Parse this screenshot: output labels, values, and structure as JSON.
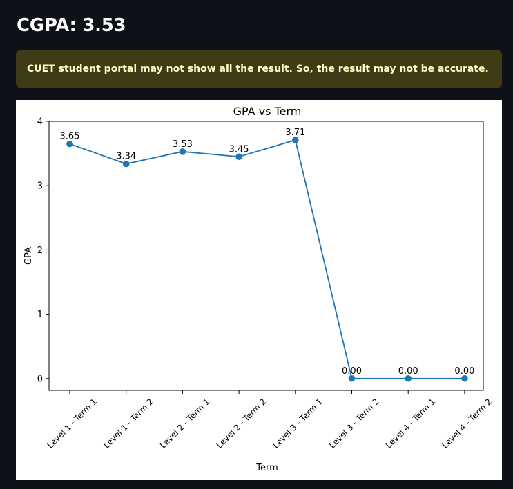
{
  "heading": "CGPA: 3.53",
  "warning": "CUET student portal may not show all the result. So, the result may not be accurate.",
  "colors": {
    "background": "#0e1117",
    "warning_bg": "#3e3b16",
    "warning_text": "#ffffc2",
    "line": "#1f77b4"
  },
  "chart_data": {
    "type": "line",
    "title": "GPA vs Term",
    "xlabel": "Term",
    "ylabel": "GPA",
    "categories": [
      "Level 1 - Term 1",
      "Level 1 - Term 2",
      "Level 2 - Term 1",
      "Level 2 - Term 2",
      "Level 3 - Term 1",
      "Level 3 - Term 2",
      "Level 4 - Term 1",
      "Level 4 - Term 2"
    ],
    "values": [
      3.65,
      3.34,
      3.53,
      3.45,
      3.71,
      0.0,
      0.0,
      0.0
    ],
    "value_labels": [
      "3.65",
      "3.34",
      "3.53",
      "3.45",
      "3.71",
      "0.00",
      "0.00",
      "0.00"
    ],
    "yticks": [
      0,
      1,
      2,
      3,
      4
    ],
    "ylim": [
      -0.185,
      4.0
    ],
    "grid": false,
    "marker": "circle"
  }
}
